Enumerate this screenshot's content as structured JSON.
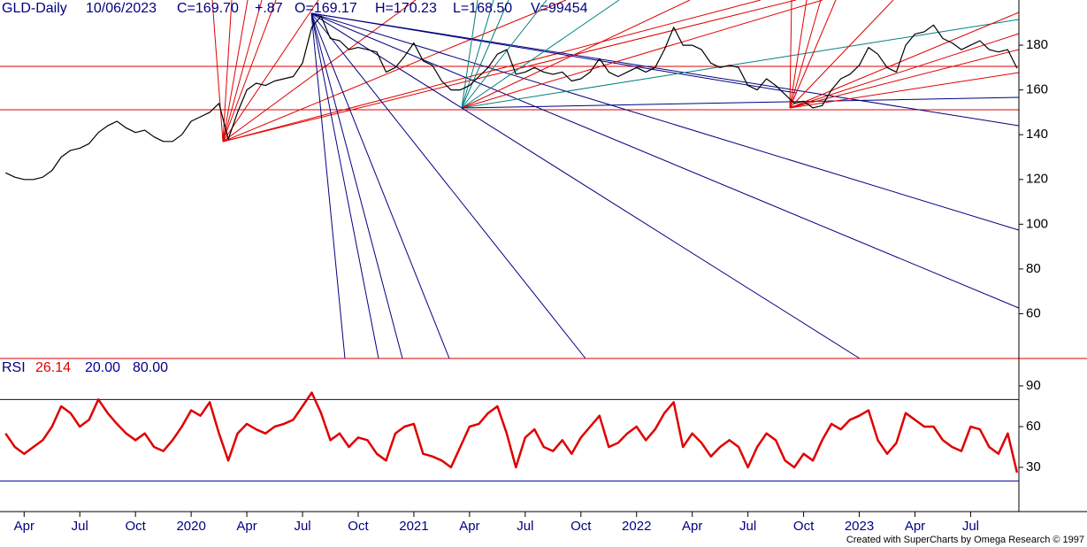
{
  "chart_data": [
    {
      "type": "line",
      "title": "GLD-Daily",
      "annotations": [
        "10/06/2023",
        "C=169.70",
        "+.87",
        "O=169.17",
        "H=170.23",
        "L=168.50",
        "V=99454"
      ],
      "x": [
        2,
        2.5,
        3,
        3.5,
        4,
        4.5,
        5,
        5.5,
        6,
        6.5,
        7,
        7.5,
        8,
        8.5,
        9,
        9.5,
        10,
        10.5,
        11,
        11.5,
        12,
        12.5,
        13,
        13.5,
        14,
        14.5,
        15,
        15.5,
        16,
        16.5,
        17,
        17.5,
        18,
        18.5,
        19,
        19.5,
        20,
        20.5,
        21,
        21.5,
        22,
        22.5,
        23,
        23.5,
        24,
        24.5,
        25,
        25.5,
        26,
        26.5,
        27,
        27.5,
        28,
        28.5,
        29,
        29.5,
        30,
        30.5,
        31,
        31.5,
        32,
        32.5,
        33,
        33.5,
        34,
        34.5,
        35,
        35.5,
        36,
        36.5,
        37,
        37.5,
        38,
        38.5,
        39,
        39.5,
        40,
        40.5,
        41,
        41.5,
        42,
        42.5,
        43,
        43.5,
        44,
        44.5,
        45,
        45.5,
        46,
        46.5,
        47,
        47.5,
        48,
        48.5,
        49,
        49.5,
        50,
        50.5,
        51,
        51.5,
        52,
        52.5,
        53,
        53.5,
        54,
        54.5,
        55,
        55.5,
        56,
        56.5
      ],
      "series": [
        {
          "name": "GLD",
          "color": "#000000",
          "values": [
            123,
            121,
            120,
            120,
            121,
            124,
            130,
            133,
            134,
            136,
            141,
            144,
            146,
            143,
            141,
            142,
            139,
            137,
            137,
            140,
            146,
            148,
            150,
            154,
            138,
            150,
            160,
            163,
            162,
            164,
            165,
            166,
            172,
            188,
            193,
            183,
            182,
            178,
            179,
            178,
            177,
            168,
            170,
            175,
            181,
            173,
            171,
            164,
            160,
            160,
            162,
            166,
            170,
            176,
            178,
            167,
            168,
            170,
            168,
            167,
            168,
            164,
            165,
            168,
            174,
            168,
            166,
            168,
            170,
            168,
            170,
            178,
            188,
            180,
            180,
            178,
            172,
            170,
            171,
            170,
            162,
            160,
            165,
            162,
            158,
            154,
            155,
            152,
            153,
            160,
            165,
            167,
            171,
            179,
            176,
            170,
            168,
            180,
            185,
            186,
            189,
            183,
            181,
            178,
            180,
            182,
            178,
            177,
            178,
            169.7
          ]
        }
      ],
      "xlim": [
        1.7,
        56.6
      ],
      "ylim": [
        40,
        200.2
      ],
      "yticks": [
        60,
        80,
        100,
        120,
        140,
        160,
        180
      ]
    },
    {
      "type": "line",
      "title": "RSI",
      "x": [
        2,
        2.5,
        3,
        3.5,
        4,
        4.5,
        5,
        5.5,
        6,
        6.5,
        7,
        7.5,
        8,
        8.5,
        9,
        9.5,
        10,
        10.5,
        11,
        11.5,
        12,
        12.5,
        13,
        13.5,
        14,
        14.5,
        15,
        15.5,
        16,
        16.5,
        17,
        17.5,
        18,
        18.5,
        19,
        19.5,
        20,
        20.5,
        21,
        21.5,
        22,
        22.5,
        23,
        23.5,
        24,
        24.5,
        25,
        25.5,
        26,
        26.5,
        27,
        27.5,
        28,
        28.5,
        29,
        29.5,
        30,
        30.5,
        31,
        31.5,
        32,
        32.5,
        33,
        33.5,
        34,
        34.5,
        35,
        35.5,
        36,
        36.5,
        37,
        37.5,
        38,
        38.5,
        39,
        39.5,
        40,
        40.5,
        41,
        41.5,
        42,
        42.5,
        43,
        43.5,
        44,
        44.5,
        45,
        45.5,
        46,
        46.5,
        47,
        47.5,
        48,
        48.5,
        49,
        49.5,
        50,
        50.5,
        51,
        51.5,
        52,
        52.5,
        53,
        53.5,
        54,
        54.5,
        55,
        55.5,
        56,
        56.5
      ],
      "series": [
        {
          "name": "RSI",
          "color": "#e00000",
          "values": [
            55,
            45,
            40,
            45,
            50,
            60,
            75,
            70,
            60,
            65,
            80,
            70,
            62,
            55,
            50,
            55,
            45,
            42,
            50,
            60,
            72,
            68,
            78,
            55,
            35,
            55,
            62,
            58,
            55,
            60,
            62,
            65,
            75,
            85,
            70,
            50,
            55,
            45,
            52,
            50,
            40,
            35,
            55,
            60,
            62,
            40,
            38,
            35,
            30,
            45,
            60,
            62,
            70,
            75,
            55,
            30,
            52,
            58,
            45,
            42,
            50,
            40,
            52,
            60,
            68,
            45,
            48,
            55,
            60,
            50,
            58,
            70,
            78,
            45,
            55,
            48,
            38,
            45,
            50,
            45,
            30,
            45,
            55,
            50,
            35,
            30,
            40,
            35,
            50,
            62,
            58,
            65,
            68,
            72,
            50,
            40,
            48,
            70,
            65,
            60,
            60,
            50,
            45,
            42,
            60,
            58,
            45,
            40,
            55,
            26.14
          ]
        }
      ],
      "levels": [
        {
          "value": 20,
          "label": "20.00",
          "color": "#0000a0"
        },
        {
          "value": 80,
          "label": "80.00",
          "color": "#000080"
        }
      ],
      "xlim": [
        1.7,
        56.6
      ],
      "ylim": [
        -2.6,
        110.2
      ],
      "yticks": [
        30,
        60,
        90
      ],
      "xticks": [
        {
          "value": 3,
          "label": "Apr"
        },
        {
          "value": 6,
          "label": "Jul"
        },
        {
          "value": 9,
          "label": "Oct"
        },
        {
          "value": 12,
          "label": "2020"
        },
        {
          "value": 15,
          "label": "Apr"
        },
        {
          "value": 18,
          "label": "Jul"
        },
        {
          "value": 21,
          "label": "Oct"
        },
        {
          "value": 24,
          "label": "2021"
        },
        {
          "value": 27,
          "label": "Apr"
        },
        {
          "value": 30,
          "label": "Jul"
        },
        {
          "value": 33,
          "label": "Oct"
        },
        {
          "value": 36,
          "label": "2022"
        },
        {
          "value": 39,
          "label": "Apr"
        },
        {
          "value": 42,
          "label": "Jul"
        },
        {
          "value": 45,
          "label": "Oct"
        },
        {
          "value": 48,
          "label": "2023"
        },
        {
          "value": 51,
          "label": "Apr"
        },
        {
          "value": 54,
          "label": "Jul"
        }
      ]
    }
  ],
  "footer": "Created with SuperCharts by Omega Research © 1997"
}
